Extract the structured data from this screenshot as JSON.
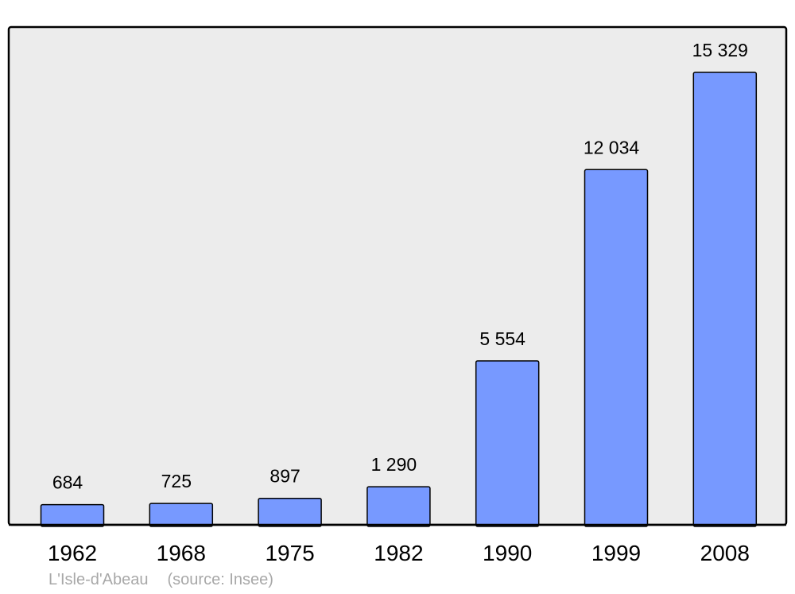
{
  "chart_data": {
    "type": "bar",
    "categories": [
      "1962",
      "1968",
      "1975",
      "1982",
      "1990",
      "1999",
      "2008"
    ],
    "values": [
      684,
      725,
      897,
      1290,
      5554,
      12034,
      15329
    ],
    "value_labels": [
      "684",
      "725",
      "897",
      "1 290",
      "5 554",
      "12 034",
      "15 329"
    ],
    "ylim": [
      0,
      15329
    ],
    "grid": false,
    "legend": "none",
    "colors": {
      "bar_fill": "#7799ff",
      "bar_stroke": "#000000",
      "plot_background": "#ececec",
      "frame": "#000000"
    }
  },
  "footer": {
    "place": "L'Isle-d'Abeau",
    "source": "(source: Insee)"
  }
}
